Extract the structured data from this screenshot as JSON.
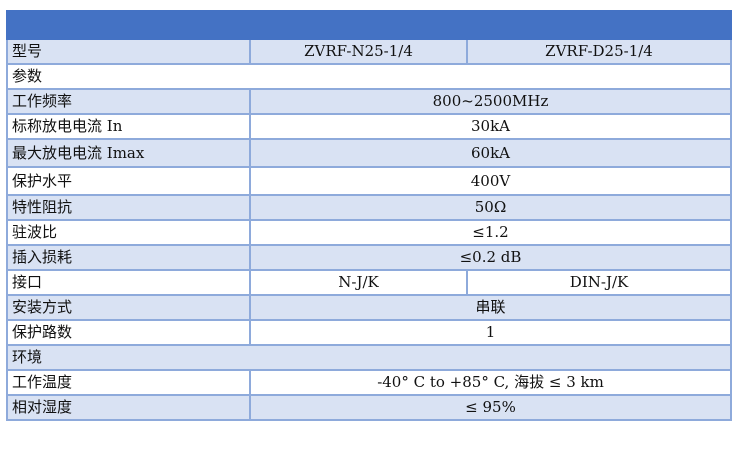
{
  "header": {
    "color": "#4472c4"
  },
  "model": {
    "label": "型号",
    "values": [
      "ZVRF-N25-1/4",
      "ZVRF-D25-1/4"
    ]
  },
  "sections": {
    "params": "参数",
    "env": "环境"
  },
  "rows": [
    {
      "label": "工作频率",
      "value": "800~2500MHz"
    },
    {
      "label": "标称放电电流 In",
      "value": "30kA"
    },
    {
      "label": "最大放电电流 Imax",
      "value": "60kA"
    },
    {
      "label": "保护水平",
      "value": "400V"
    },
    {
      "label": "特性阻抗",
      "value": "50Ω"
    },
    {
      "label": "驻波比",
      "value": "≤1.2"
    },
    {
      "label": "插入损耗",
      "value": "≤0.2 dB"
    }
  ],
  "connector": {
    "label": "接口",
    "values": [
      "N-J/K",
      "DIN-J/K"
    ]
  },
  "rows2": [
    {
      "label": "安装方式",
      "value": "串联"
    },
    {
      "label": "保护路数",
      "value": "1"
    }
  ],
  "env_rows": [
    {
      "label": "工作温度",
      "value": "-40° C to +85° C, 海拔 ≤ 3 km"
    },
    {
      "label": "相对湿度",
      "value": "≤ 95%"
    }
  ]
}
